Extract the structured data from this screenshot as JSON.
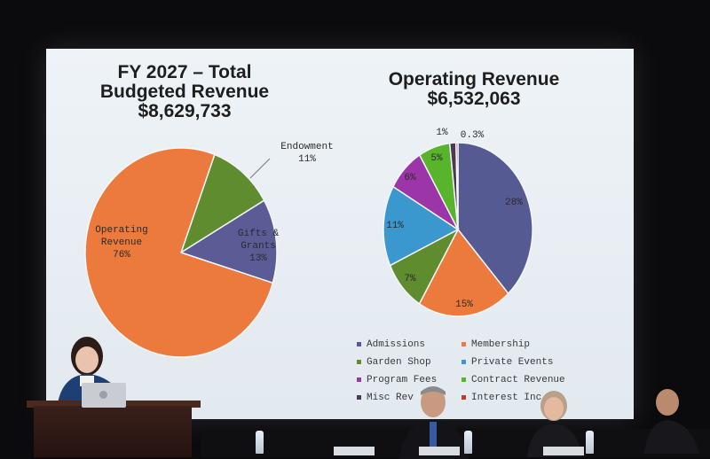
{
  "left_title": [
    "FY 2027 – Total",
    "Budgeted Revenue",
    "$8,629,733"
  ],
  "right_title": [
    "Operating Revenue",
    "$6,532,063"
  ],
  "left_pie": {
    "slices": [
      {
        "name": "Operating Revenue",
        "label_lines": [
          "Operating",
          "Revenue",
          "76%"
        ],
        "value": 76,
        "color": "#ec7a3c"
      },
      {
        "name": "Endowment",
        "label_lines": [
          "Endowment",
          "11%"
        ],
        "value": 11,
        "color": "#5e8c2f"
      },
      {
        "name": "Gifts & Grants",
        "label_lines": [
          "Gifts &",
          "Grants",
          "13%"
        ],
        "value": 13,
        "color": "#5b5c96"
      }
    ]
  },
  "right_pie": {
    "slices": [
      {
        "name": "Admissions",
        "label": "28%",
        "value": 28,
        "color": "#565a93"
      },
      {
        "name": "Membership",
        "label": "15%",
        "value": 15,
        "color": "#ec7a3c"
      },
      {
        "name": "Garden Shop",
        "label": "7%",
        "value": 7,
        "color": "#5e8c2f"
      },
      {
        "name": "Private Events",
        "label": "11%",
        "value": 11,
        "color": "#3a98cf"
      },
      {
        "name": "Program Fees",
        "label": "6%",
        "value": 6,
        "color": "#9b35a8"
      },
      {
        "name": "Contract Revenue",
        "label": "5%",
        "value": 5,
        "color": "#58b42b"
      },
      {
        "name": "Misc Revenue",
        "label": "1%",
        "value": 1,
        "color": "#4a3a55"
      },
      {
        "name": "Interest Income",
        "label": "0.3%",
        "value": 0.3,
        "color": "#c0392b"
      }
    ]
  },
  "legend": [
    {
      "text": "Admissions",
      "color": "#565a93"
    },
    {
      "text": "Membership",
      "color": "#ec7a3c"
    },
    {
      "text": "Garden Shop",
      "color": "#5e8c2f"
    },
    {
      "text": "Private Events",
      "color": "#3a98cf"
    },
    {
      "text": "Program Fees",
      "color": "#9b35a8"
    },
    {
      "text": "Contract Revenue",
      "color": "#58b42b"
    },
    {
      "text": "Misc Rev",
      "color": "#4a3a55"
    },
    {
      "text": "Interest Inc",
      "color": "#c0392b"
    }
  ],
  "colors": {
    "screen": "#e8eef3",
    "stage": "#0b0a0c"
  }
}
